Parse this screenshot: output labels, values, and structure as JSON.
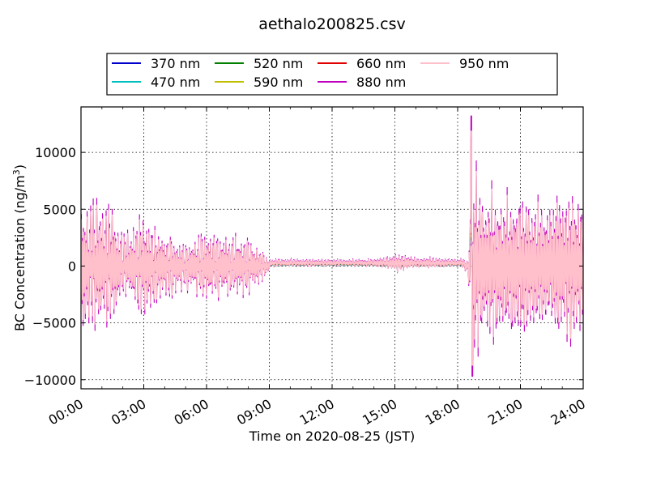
{
  "chart_data": {
    "type": "line",
    "title": "aethalo200825.csv",
    "xlabel": "Time on 2020-08-25 (JST)",
    "ylabel": "BC Concentration (ng/m",
    "ylabel_sup": "3",
    "ylabel_close": ")",
    "xlim": [
      0,
      24
    ],
    "ylim": [
      -10800,
      14000
    ],
    "x_ticks": [
      0,
      3,
      6,
      9,
      12,
      15,
      18,
      21,
      24
    ],
    "x_tick_labels": [
      "00:00",
      "03:00",
      "06:00",
      "09:00",
      "12:00",
      "15:00",
      "18:00",
      "21:00",
      "24:00"
    ],
    "y_ticks": [
      -10000,
      -5000,
      0,
      5000,
      10000
    ],
    "y_tick_labels": [
      "−10000",
      "−5000",
      "0",
      "5000",
      "10000"
    ],
    "grid": true,
    "legend_position": "top-center",
    "series": [
      {
        "name": "370 nm",
        "color": "#0000cc",
        "amp": 0.55
      },
      {
        "name": "470 nm",
        "color": "#00bfbf",
        "amp": 0.62
      },
      {
        "name": "520 nm",
        "color": "#008000",
        "amp": 0.7
      },
      {
        "name": "590 nm",
        "color": "#bfbf00",
        "amp": 0.78
      },
      {
        "name": "660 nm",
        "color": "#e00000",
        "amp": 0.86
      },
      {
        "name": "880 nm",
        "color": "#bf00bf",
        "amp": 1.0
      },
      {
        "name": "950 nm",
        "color": "#ffc0cb",
        "amp": 0.9
      }
    ],
    "envelope": {
      "time_hours": [
        0,
        1.5,
        2.0,
        3.0,
        4.0,
        5.0,
        6.0,
        7.0,
        8.0,
        8.5,
        9.0,
        10.5,
        12.0,
        13.5,
        14.5,
        15.2,
        16.0,
        17.0,
        18.0,
        18.5,
        18.7,
        19.0,
        20.0,
        21.0,
        22.0,
        23.0,
        24.0
      ],
      "amplitude": [
        6800,
        6700,
        3000,
        5500,
        3500,
        2500,
        3500,
        3500,
        3000,
        2000,
        700,
        700,
        600,
        600,
        900,
        1700,
        900,
        900,
        700,
        700,
        12000,
        9000,
        7500,
        8000,
        7000,
        8000,
        7500
      ],
      "annotation_peak": {
        "time": 18.65,
        "max": 13200,
        "min": -9700
      }
    }
  }
}
